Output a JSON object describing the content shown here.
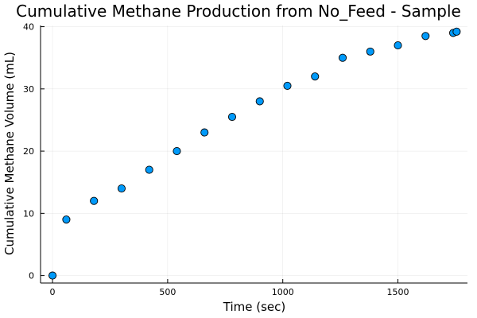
{
  "chart_data": {
    "type": "scatter",
    "title": "Cumulative Methane Production from No_Feed - Sample",
    "xlabel": "Time (sec)",
    "ylabel": "Cumulative Methane Volume (mL)",
    "xlim": [
      -52,
      1802
    ],
    "ylim": [
      -1.2,
      40.2
    ],
    "xticks": [
      0,
      500,
      1000,
      1500
    ],
    "yticks": [
      0,
      10,
      20,
      30,
      40
    ],
    "grid": true,
    "legend": "none",
    "marker_color": "#009AFA",
    "series": [
      {
        "x": [
          0,
          60,
          180,
          300,
          420,
          540,
          660,
          780,
          900,
          1020,
          1140,
          1260,
          1380,
          1500,
          1620,
          1740,
          1755
        ],
        "y": [
          0,
          9,
          12,
          14,
          17,
          20,
          23,
          25.5,
          28,
          30.5,
          32,
          35,
          36,
          37,
          38.5,
          39,
          39.2
        ]
      }
    ]
  }
}
